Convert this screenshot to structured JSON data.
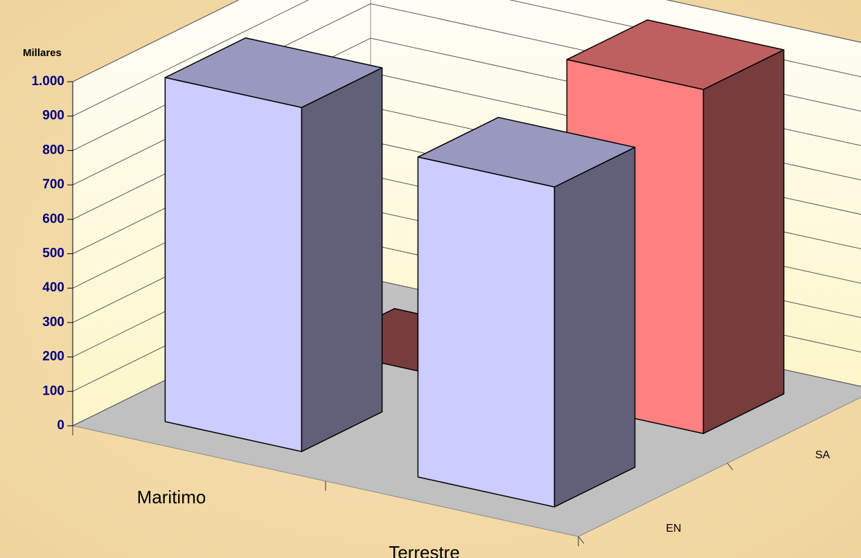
{
  "chart_data": {
    "type": "bar3d",
    "y_unit_label": "Millares",
    "categories": [
      "Maritimo",
      "Terrestre"
    ],
    "series": [
      {
        "name": "EN",
        "color": "#ccccff",
        "values": [
          1000,
          930
        ]
      },
      {
        "name": "SA",
        "color": "#ff8080",
        "values": [
          0,
          1000
        ]
      }
    ],
    "ylim": [
      0,
      1000
    ],
    "yticks": [
      0,
      100,
      200,
      300,
      400,
      500,
      600,
      700,
      800,
      900,
      {
        "value": 1000,
        "label": "1.000"
      }
    ],
    "grid": true
  }
}
